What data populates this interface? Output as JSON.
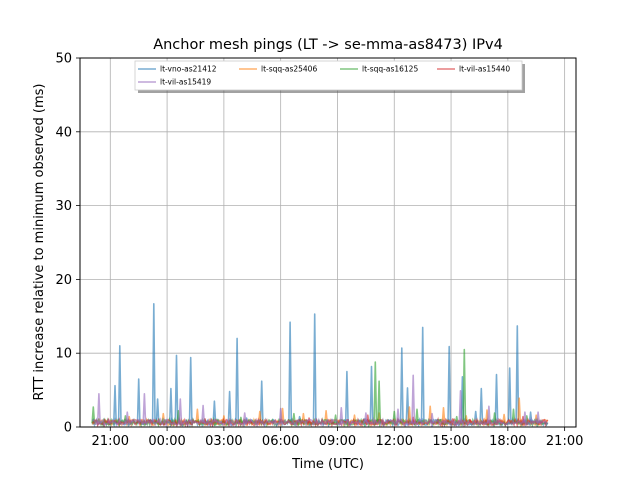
{
  "chart_data": {
    "type": "line",
    "title": "Anchor mesh pings (LT -> se-mma-as8473) IPv4",
    "xlabel": "Time (UTC)",
    "ylabel": "RTT increase relative to minimum observed (ms)",
    "x_unit": "hours",
    "xlim": [
      19.4,
      45.6
    ],
    "ylim": [
      0,
      50
    ],
    "x_ticks": [
      {
        "value": 21,
        "label": "21:00"
      },
      {
        "value": 24,
        "label": "00:00"
      },
      {
        "value": 27,
        "label": "03:00"
      },
      {
        "value": 30,
        "label": "06:00"
      },
      {
        "value": 33,
        "label": "09:00"
      },
      {
        "value": 36,
        "label": "12:00"
      },
      {
        "value": 39,
        "label": "15:00"
      },
      {
        "value": 42,
        "label": "18:00"
      },
      {
        "value": 45,
        "label": "21:00"
      }
    ],
    "y_ticks": [
      0,
      10,
      20,
      30,
      40,
      50
    ],
    "grid": true,
    "legend_placement": "top-center",
    "legend_columns": 4,
    "series": [
      {
        "name": "lt-vno-as21412",
        "color": "#1f77b4",
        "x": [
          20.1,
          21.25,
          21.5,
          22.1,
          22.5,
          23.3,
          23.5,
          24.2,
          24.5,
          25.25,
          26.5,
          27.3,
          27.7,
          28.2,
          29.0,
          29.6,
          30.5,
          31.0,
          31.8,
          32.7,
          33.5,
          34.4,
          34.8,
          35.7,
          36.4,
          36.7,
          37.5,
          38.3,
          38.9,
          39.6,
          40.3,
          40.6,
          41.4,
          42.1,
          42.5,
          43.2,
          44.0
        ],
        "y": [
          0.4,
          5.6,
          11.0,
          0.6,
          6.5,
          16.7,
          3.8,
          5.2,
          9.7,
          9.4,
          3.5,
          4.8,
          12.0,
          1.2,
          6.2,
          1.0,
          14.2,
          1.4,
          15.3,
          0.6,
          7.5,
          1.1,
          8.2,
          0.9,
          10.7,
          5.3,
          13.5,
          1.0,
          10.9,
          6.8,
          2.1,
          5.2,
          7.1,
          8.0,
          13.7,
          2.0,
          0.6
        ]
      },
      {
        "name": "lt-sqq-as25406",
        "color": "#ff7f0e",
        "x": [
          20.4,
          22.0,
          23.8,
          25.6,
          27.0,
          28.9,
          30.1,
          31.2,
          32.4,
          33.9,
          35.2,
          36.8,
          37.9,
          38.6,
          39.8,
          40.9,
          41.8,
          42.6,
          43.5
        ],
        "y": [
          1.1,
          1.4,
          1.8,
          2.4,
          1.5,
          2.1,
          2.5,
          1.8,
          2.2,
          1.6,
          1.9,
          2.7,
          2.8,
          2.6,
          1.5,
          2.3,
          1.7,
          3.9,
          1.6
        ]
      },
      {
        "name": "lt-sqq-as16125",
        "color": "#2ca02c",
        "x": [
          20.1,
          21.8,
          24.6,
          27.9,
          30.7,
          32.9,
          35.0,
          35.2,
          36.0,
          37.2,
          39.3,
          39.7,
          41.3,
          42.3,
          43.0
        ],
        "y": [
          2.7,
          1.5,
          2.2,
          1.3,
          1.8,
          1.6,
          8.8,
          6.2,
          2.1,
          2.4,
          1.4,
          10.5,
          1.9,
          2.4,
          1.5
        ]
      },
      {
        "name": "lt-vil-as15440",
        "color": "#d62728",
        "x": [
          20.9,
          23.1,
          26.0,
          28.4,
          31.5,
          34.6,
          35.4,
          37.0,
          39.1,
          40.0,
          42.8,
          43.7
        ],
        "y": [
          1.0,
          0.9,
          1.1,
          0.8,
          1.2,
          1.6,
          0.9,
          1.3,
          1.1,
          1.0,
          1.4,
          0.8
        ]
      },
      {
        "name": "lt-vil-as15419",
        "color": "#9467bd",
        "x": [
          20.4,
          21.9,
          22.8,
          24.7,
          25.9,
          28.1,
          30.0,
          33.2,
          34.5,
          36.2,
          37.0,
          38.0,
          39.5,
          41.0,
          42.9,
          43.6
        ],
        "y": [
          4.5,
          2.0,
          4.5,
          3.8,
          2.9,
          1.9,
          2.5,
          2.6,
          1.9,
          2.4,
          7.0,
          1.8,
          4.9,
          2.8,
          2.0,
          2.0
        ]
      }
    ]
  }
}
